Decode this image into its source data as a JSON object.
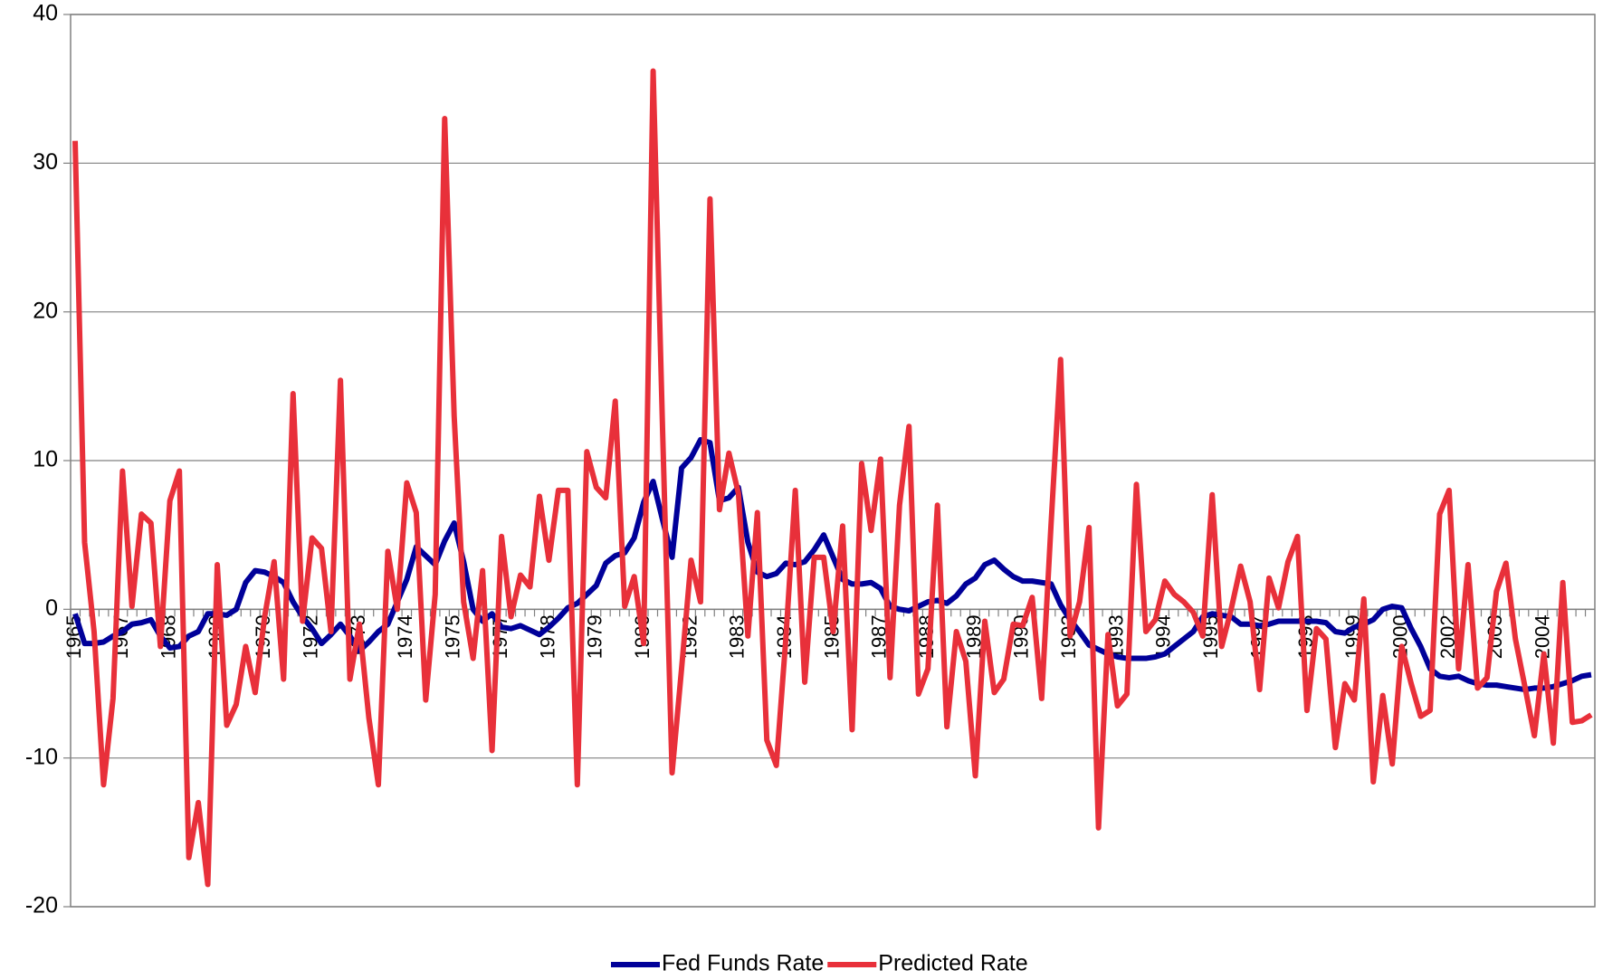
{
  "chart_data": {
    "type": "line",
    "categories": [
      "1965",
      null,
      null,
      null,
      null,
      "1967",
      null,
      null,
      null,
      null,
      "1968",
      null,
      null,
      null,
      null,
      "1969",
      null,
      null,
      null,
      null,
      "1970",
      null,
      null,
      null,
      null,
      "1972",
      null,
      null,
      null,
      null,
      "1973",
      null,
      null,
      null,
      null,
      "1974",
      null,
      null,
      null,
      null,
      "1975",
      null,
      null,
      null,
      null,
      "1977",
      null,
      null,
      null,
      null,
      "1978",
      null,
      null,
      null,
      null,
      "1979",
      null,
      null,
      null,
      null,
      "1980",
      null,
      null,
      null,
      null,
      "1982",
      null,
      null,
      null,
      null,
      "1983",
      null,
      null,
      null,
      null,
      "1984",
      null,
      null,
      null,
      null,
      "1985",
      null,
      null,
      null,
      null,
      "1987",
      null,
      null,
      null,
      null,
      "1988",
      null,
      null,
      null,
      null,
      "1989",
      null,
      null,
      null,
      null,
      "1990",
      null,
      null,
      null,
      null,
      "1992",
      null,
      null,
      null,
      null,
      "1993",
      null,
      null,
      null,
      null,
      "1994",
      null,
      null,
      null,
      null,
      "1995",
      null,
      null,
      null,
      null,
      "1997",
      null,
      null,
      null,
      null,
      "1998",
      null,
      null,
      null,
      null,
      "1999",
      null,
      null,
      null,
      null,
      "2000",
      null,
      null,
      null,
      null,
      "2002",
      null,
      null,
      null,
      null,
      "2003",
      null,
      null,
      null,
      null,
      "2004",
      null,
      null,
      null,
      null,
      null
    ],
    "series": [
      {
        "name": "Fed Funds Rate",
        "color": "#000099",
        "values": [
          -0.3,
          -2.3,
          -2.3,
          -2.2,
          -1.8,
          -1.5,
          -1,
          -0.9,
          -0.7,
          -1.8,
          -2.6,
          -2.5,
          -1.8,
          -1.5,
          -0.3,
          -0.3,
          -0.4,
          0,
          1.8,
          2.6,
          2.5,
          2.2,
          1.8,
          0.5,
          -0.5,
          -1.3,
          -2.3,
          -1.7,
          -1,
          -1.8,
          -2.8,
          -2.2,
          -1.5,
          -1,
          0.5,
          2,
          4.2,
          3.6,
          3.0,
          4.6,
          5.8,
          3.2,
          0,
          -0.8,
          -0.3,
          -1.2,
          -1.3,
          -1.1,
          -1.4,
          -1.7,
          -1.2,
          -0.6,
          0.1,
          0.4,
          1.0,
          1.6,
          3.1,
          3.6,
          3.8,
          4.8,
          7.2,
          8.6,
          6,
          3.5,
          9.5,
          10.2,
          11.4,
          11.2,
          7.3,
          7.5,
          8.2,
          4.5,
          2.5,
          2.2,
          2.4,
          3.1,
          3.0,
          3.2,
          4.0,
          5.0,
          3.5,
          2.0,
          1.7,
          1.7,
          1.8,
          1.4,
          0.2,
          0,
          -0.1,
          0.2,
          0.5,
          0.6,
          0.4,
          0.9,
          1.7,
          2.1,
          3.0,
          3.3,
          2.7,
          2.2,
          1.9,
          1.9,
          1.8,
          1.7,
          0.3,
          -0.7,
          -1.5,
          -2.4,
          -2.7,
          -3.0,
          -3.2,
          -3.3,
          -3.3,
          -3.3,
          -3.2,
          -3.0,
          -2.5,
          -2.0,
          -1.5,
          -0.5,
          -0.3,
          -0.4,
          -0.5,
          -1.0,
          -1.0,
          -1.1,
          -1.0,
          -0.8,
          -0.8,
          -0.8,
          -0.8,
          -0.8,
          -0.9,
          -1.5,
          -1.6,
          -1.2,
          -1.0,
          -0.7,
          0,
          0.2,
          0.1,
          -1.3,
          -2.5,
          -4.0,
          -4.5,
          -4.6,
          -4.5,
          -4.8,
          -5.0,
          -5.1,
          -5.1,
          -5.2,
          -5.3,
          -5.4,
          -5.3,
          -5.3,
          -5.2,
          -5.0,
          -4.8,
          -4.5,
          -4.4
        ]
      },
      {
        "name": "Predicted Rate",
        "color": "#e8303a",
        "values": [
          31.5,
          4.5,
          -1.5,
          -11.8,
          -6,
          9.3,
          0.2,
          6.4,
          5.8,
          -2.5,
          7.3,
          9.3,
          -16.7,
          -13,
          -18.5,
          3,
          -7.8,
          -6.4,
          -2.5,
          -5.6,
          -0.5,
          3.2,
          -4.7,
          14.5,
          -0.8,
          4.8,
          4.1,
          -1.5,
          15.4,
          -4.7,
          -1,
          -7.3,
          -11.8,
          3.9,
          0,
          8.5,
          6.5,
          -6.1,
          1.0,
          33,
          13,
          0.5,
          -3.3,
          2.6,
          -9.5,
          4.9,
          -0.5,
          2.3,
          1.5,
          7.6,
          3.3,
          8,
          8,
          -11.8,
          10.6,
          8.2,
          7.5,
          14,
          0.2,
          2.2,
          -2.3,
          36.2,
          12,
          -11,
          -4,
          3.3,
          0.5,
          27.6,
          6.7,
          10.5,
          7.8,
          -1.8,
          6.5,
          -8.8,
          -10.5,
          -2,
          8,
          -4.9,
          3.5,
          3.5,
          -1.5,
          5.6,
          -8.1,
          9.8,
          5.3,
          10.1,
          -4.6,
          7,
          12.3,
          -5.7,
          -4,
          7,
          -7.9,
          -1.5,
          -3.5,
          -11.2,
          -0.8,
          -5.6,
          -4.7,
          -1,
          -1.1,
          0.8,
          -6,
          5.8,
          16.8,
          -1.8,
          0.5,
          5.5,
          -14.7,
          -1.7,
          -6.5,
          -5.7,
          8.4,
          -1.5,
          -0.7,
          1.9,
          1,
          0.5,
          -0.2,
          -1.8,
          7.7,
          -2.5,
          0,
          2.9,
          0.5,
          -5.4,
          2.1,
          0.1,
          3.2,
          4.9,
          -6.8,
          -1.3,
          -2.0,
          -9.3,
          -5,
          -6.1,
          0.7,
          -11.6,
          -5.8,
          -10.4,
          -2.5,
          -5,
          -7.2,
          -6.8,
          6.4,
          8,
          -4,
          3,
          -5.3,
          -4.6,
          1.2,
          3.1,
          -2,
          -5.2,
          -8.5,
          -3,
          -9,
          1.8,
          -7.6,
          -7.5,
          -7.1
        ]
      }
    ],
    "ylim": [
      -20,
      40
    ],
    "yticks": [
      -20,
      -10,
      0,
      10,
      20,
      30,
      40
    ],
    "grid": true,
    "legend": "bottom"
  }
}
